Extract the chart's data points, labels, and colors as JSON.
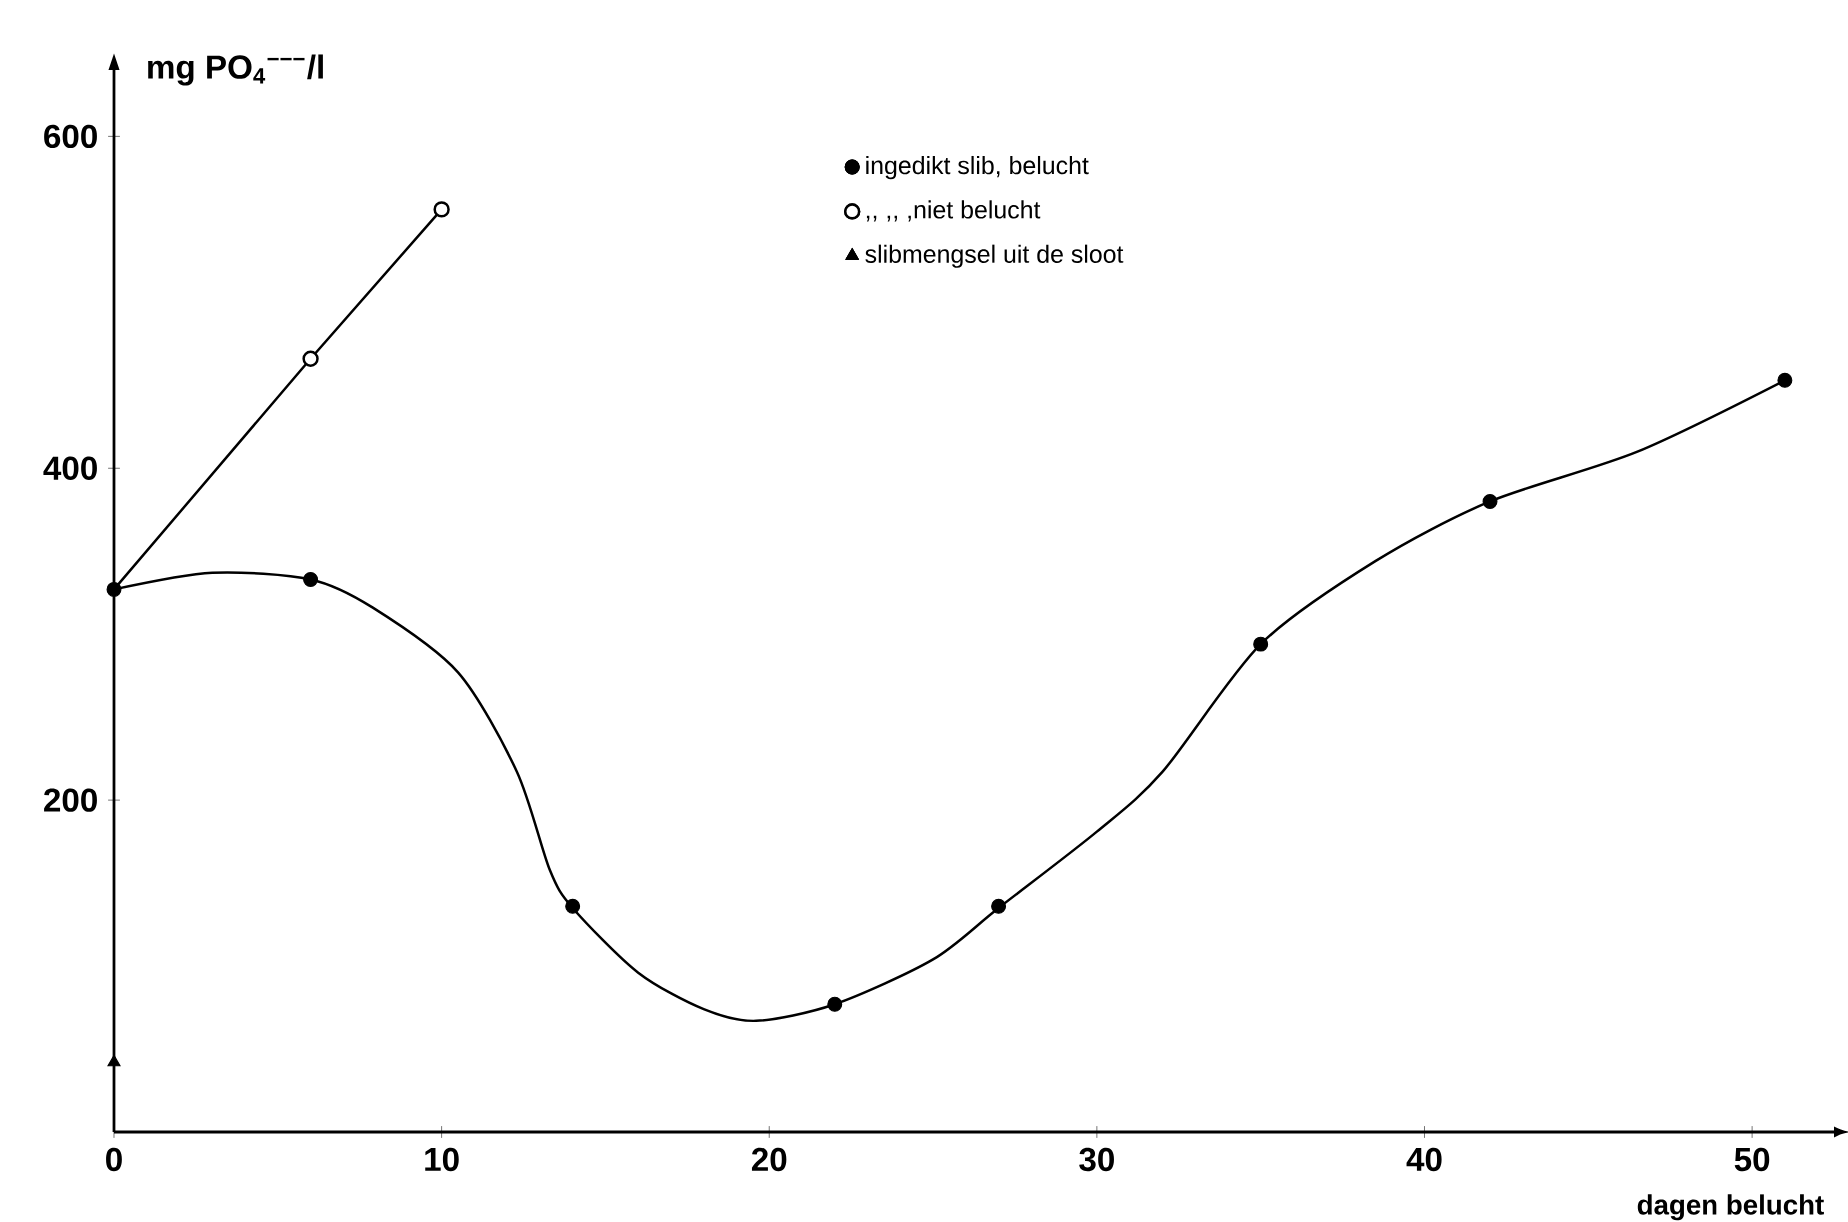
{
  "chart_data": {
    "type": "line",
    "xlabel": "dagen belucht",
    "ylabel": "mg PO$_{4}$$^{−−−}$/l",
    "xlim": [
      0,
      52.5
    ],
    "ylim": [
      0,
      640
    ],
    "xticks": [
      0,
      10,
      20,
      30,
      40,
      50
    ],
    "yticks": [
      200,
      400,
      600
    ],
    "grid": false,
    "legend": "top",
    "series": [
      {
        "name": "ingedikt slib, belucht",
        "type": "scatter",
        "marker": "circle",
        "color": "#000000",
        "x": [
          0,
          6,
          14,
          22,
          27,
          35,
          42,
          51
        ],
        "values": [
          327,
          333,
          136,
          77,
          136,
          294,
          380,
          453
        ]
      },
      {
        "name": ",,          ,, ,niet belucht",
        "type": "line",
        "marker": "circle",
        "color": "#000000",
        "x": [
          0,
          6,
          10
        ],
        "values": [
          327,
          466,
          556
        ]
      },
      {
        "name": "slibmengsel uit de sloot",
        "type": "scatter",
        "marker": "triangle",
        "color": "#000000",
        "x": [
          0
        ],
        "values": [
          42
        ]
      },
      {
        "marker": "none",
        "color": "#000000",
        "x": [
          0,
          3,
          6,
          7.9,
          10.5,
          12.3,
          13.3,
          14,
          16,
          18,
          19.6,
          22,
          25,
          27,
          30,
          32,
          35,
          38.5,
          42,
          46.5,
          51
        ],
        "values": [
          327,
          337,
          333,
          316,
          277,
          217,
          158,
          135,
          96,
          74,
          67,
          77,
          104,
          135,
          181,
          217,
          294,
          344,
          380,
          410,
          453
        ]
      }
    ]
  }
}
